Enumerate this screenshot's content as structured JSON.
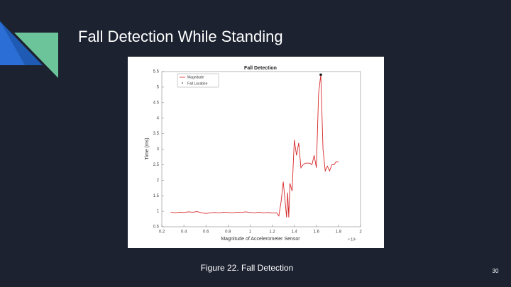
{
  "slide": {
    "title": "Fall Detection While Standing",
    "caption": "Figure 22. Fall Detection",
    "page_number": "30"
  },
  "chart_data": {
    "type": "line",
    "title": "Fall Detection",
    "x_label": "Magnitude of Accelerometer Sensor",
    "y_label": "Time (ms)",
    "x_exponent": "× 10⁴",
    "xlim": [
      0.2,
      2
    ],
    "xticks": [
      0.2,
      0.4,
      0.6,
      0.8,
      1,
      1.2,
      1.4,
      1.6,
      1.8,
      2
    ],
    "ylim": [
      0.5,
      5.5
    ],
    "yticks": [
      0.5,
      1,
      1.5,
      2,
      2.5,
      3,
      3.5,
      4,
      4.5,
      5,
      5.5
    ],
    "legend": "top-left",
    "series": [
      {
        "name": "Magnitude",
        "color": "#d62728",
        "x": [
          0.28,
          0.32,
          0.36,
          0.4,
          0.44,
          0.48,
          0.52,
          0.56,
          0.6,
          0.64,
          0.68,
          0.72,
          0.76,
          0.8,
          0.84,
          0.88,
          0.92,
          0.96,
          1.0,
          1.04,
          1.08,
          1.12,
          1.16,
          1.2,
          1.24,
          1.26,
          1.28,
          1.3,
          1.32,
          1.33,
          1.34,
          1.35,
          1.36,
          1.38,
          1.4,
          1.42,
          1.44,
          1.46,
          1.48,
          1.5,
          1.52,
          1.54,
          1.56,
          1.58,
          1.6,
          1.62,
          1.64,
          1.66,
          1.68,
          1.7,
          1.72,
          1.74,
          1.76,
          1.78,
          1.8
        ],
        "values": [
          0.97,
          0.95,
          0.97,
          0.96,
          0.98,
          0.97,
          0.99,
          0.95,
          0.93,
          0.95,
          0.96,
          0.95,
          0.97,
          0.96,
          0.95,
          0.97,
          0.96,
          0.98,
          0.96,
          0.95,
          0.97,
          0.95,
          0.96,
          0.94,
          0.95,
          0.85,
          1.3,
          1.95,
          1.2,
          0.8,
          1.6,
          0.8,
          1.9,
          1.65,
          3.3,
          2.8,
          3.2,
          2.4,
          2.5,
          2.55,
          2.55,
          2.55,
          2.5,
          2.8,
          2.4,
          4.8,
          5.4,
          3.0,
          2.3,
          2.45,
          2.3,
          2.5,
          2.5,
          2.6,
          2.58
        ]
      },
      {
        "name": "Fall Location",
        "color": "#000000",
        "x": [
          1.64
        ],
        "values": [
          5.4
        ]
      }
    ]
  }
}
